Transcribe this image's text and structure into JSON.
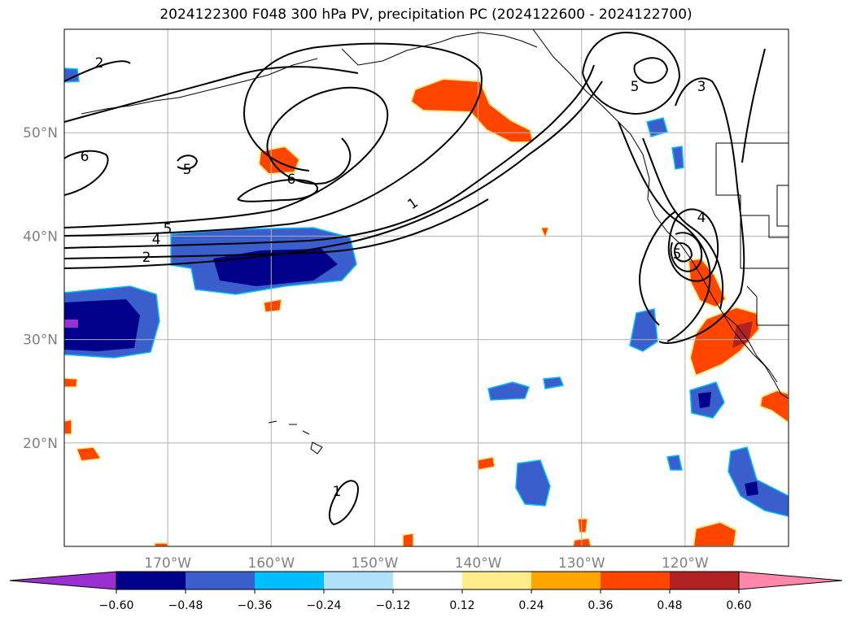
{
  "title": "2024122300 F048 300 hPa PV, precipitation PC (2024122600 - 2024122700)",
  "map": {
    "lat_ticks": [
      {
        "value": 50,
        "label": "50°N"
      },
      {
        "value": 40,
        "label": "40°N"
      },
      {
        "value": 30,
        "label": "30°N"
      },
      {
        "value": 20,
        "label": "20°N"
      }
    ],
    "lon_ticks": [
      {
        "value": -170,
        "label": "170°W"
      },
      {
        "value": -160,
        "label": "160°W"
      },
      {
        "value": -150,
        "label": "150°W"
      },
      {
        "value": -140,
        "label": "140°W"
      },
      {
        "value": -130,
        "label": "130°W"
      },
      {
        "value": -120,
        "label": "120°W"
      }
    ],
    "lon_range": [
      -180,
      -110
    ],
    "lat_range": [
      10,
      60
    ],
    "grid": true,
    "pv_contour_labels": [
      "2",
      "6",
      "5",
      "5",
      "4",
      "2",
      "1",
      "6",
      "5",
      "3",
      "4",
      "5",
      "1"
    ]
  },
  "colorbar": {
    "levels": [
      "−0.60",
      "−0.48",
      "−0.36",
      "−0.24",
      "−0.12",
      "0.12",
      "0.24",
      "0.36",
      "0.48",
      "0.60"
    ],
    "colors": [
      "#9b30d0",
      "#00008b",
      "#3a5fcd",
      "#00bfff",
      "#ade2fa",
      "#ffffff",
      "#ffec8b",
      "#ffa500",
      "#ff4500",
      "#b22222",
      "#ff88aa"
    ]
  }
}
